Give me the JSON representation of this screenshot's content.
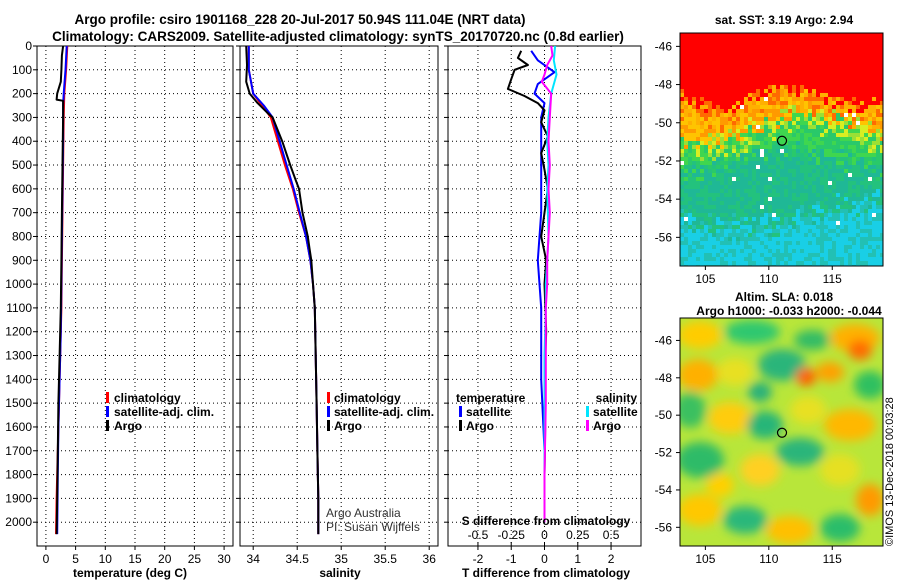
{
  "header": {
    "line1": "Argo profile: csiro 1901168_228 20-Jul-2017 50.94S 111.04E (NRT data)",
    "line2": "Climatology: CARS2009. Satellite-adjusted climatology: synTS_20170720.nc (0.8d earlier)"
  },
  "colors": {
    "climatology": "#ff0000",
    "satellite": "#0000ff",
    "argo": "#000000",
    "sal_satellite": "#00e5ff",
    "sal_argo": "#ff00ff"
  },
  "chart_data": [
    {
      "type": "line",
      "title": "",
      "xlabel": "temperature (deg C)",
      "ylabel": "",
      "xlim": [
        -1.5,
        31.5
      ],
      "ylim": [
        2100,
        0
      ],
      "xticks": [
        "0",
        "5",
        "10",
        "15",
        "20",
        "25",
        "30"
      ],
      "xtick_values": [
        0,
        5,
        10,
        15,
        20,
        25,
        30
      ],
      "yticks": [
        "0",
        "100",
        "200",
        "300",
        "400",
        "500",
        "600",
        "700",
        "800",
        "900",
        "1000",
        "1100",
        "1200",
        "1300",
        "1400",
        "1500",
        "1600",
        "1700",
        "1800",
        "1900",
        "2000"
      ],
      "ytick_values": [
        0,
        100,
        200,
        300,
        400,
        500,
        600,
        700,
        800,
        900,
        1000,
        1100,
        1200,
        1300,
        1400,
        1500,
        1600,
        1700,
        1800,
        1900,
        2000
      ],
      "legend": [
        "climatology",
        "satellite-adj. clim.",
        "Argo"
      ],
      "series": [
        {
          "name": "climatology",
          "color": "#ff0000",
          "points": [
            [
              3.6,
              0
            ],
            [
              3.5,
              50
            ],
            [
              3.4,
              100
            ],
            [
              3.1,
              200
            ],
            [
              3.0,
              300
            ],
            [
              2.9,
              500
            ],
            [
              2.8,
              700
            ],
            [
              2.7,
              900
            ],
            [
              2.6,
              1100
            ],
            [
              2.4,
              1300
            ],
            [
              2.2,
              1500
            ],
            [
              2.0,
              1700
            ],
            [
              1.8,
              1900
            ],
            [
              1.7,
              2050
            ]
          ]
        },
        {
          "name": "satellite-adj. clim.",
          "color": "#0000ff",
          "points": [
            [
              3.5,
              0
            ],
            [
              3.3,
              100
            ],
            [
              3.0,
              200
            ],
            [
              2.9,
              250
            ],
            [
              2.9,
              400
            ],
            [
              2.8,
              600
            ],
            [
              2.7,
              800
            ],
            [
              2.6,
              1000
            ],
            [
              2.5,
              1200
            ],
            [
              2.3,
              1400
            ],
            [
              2.1,
              1600
            ],
            [
              2.0,
              1800
            ],
            [
              1.9,
              2050
            ]
          ]
        },
        {
          "name": "Argo",
          "color": "#000000",
          "points": [
            [
              2.9,
              0
            ],
            [
              2.7,
              40
            ],
            [
              2.6,
              100
            ],
            [
              2.5,
              150
            ],
            [
              1.9,
              200
            ],
            [
              1.8,
              225
            ],
            [
              2.9,
              230
            ],
            [
              2.9,
              300
            ],
            [
              2.8,
              500
            ],
            [
              2.7,
              700
            ],
            [
              2.6,
              900
            ],
            [
              2.5,
              1100
            ],
            [
              2.3,
              1300
            ],
            [
              2.1,
              1500
            ],
            [
              2.0,
              1700
            ],
            [
              1.9,
              1900
            ],
            [
              1.8,
              2050
            ]
          ]
        }
      ]
    },
    {
      "type": "line",
      "title": "",
      "xlabel": "salinity",
      "ylabel": "",
      "xlim": [
        33.85,
        36.1
      ],
      "ylim": [
        2100,
        0
      ],
      "xticks": [
        "34",
        "34.5",
        "35",
        "35.5",
        "36"
      ],
      "xtick_values": [
        34,
        34.5,
        35,
        35.5,
        36
      ],
      "legend": [
        "climatology",
        "satellite-adj. clim.",
        "Argo"
      ],
      "annotation": [
        "Argo Australia",
        "PI: Susan Wijffels"
      ],
      "series": [
        {
          "name": "climatology",
          "color": "#ff0000",
          "points": [
            [
              33.95,
              0
            ],
            [
              33.95,
              100
            ],
            [
              34.0,
              200
            ],
            [
              34.1,
              250
            ],
            [
              34.2,
              300
            ],
            [
              34.28,
              400
            ],
            [
              34.36,
              500
            ],
            [
              34.45,
              600
            ],
            [
              34.52,
              700
            ],
            [
              34.6,
              800
            ],
            [
              34.65,
              900
            ],
            [
              34.68,
              1000
            ],
            [
              34.7,
              1100
            ],
            [
              34.71,
              1300
            ],
            [
              34.72,
              1500
            ],
            [
              34.73,
              1700
            ],
            [
              34.74,
              1900
            ],
            [
              34.74,
              2050
            ]
          ]
        },
        {
          "name": "satellite-adj. clim.",
          "color": "#0000ff",
          "points": [
            [
              33.95,
              0
            ],
            [
              33.95,
              100
            ],
            [
              34.0,
              200
            ],
            [
              34.12,
              250
            ],
            [
              34.22,
              300
            ],
            [
              34.3,
              400
            ],
            [
              34.38,
              500
            ],
            [
              34.46,
              600
            ],
            [
              34.53,
              700
            ],
            [
              34.6,
              800
            ],
            [
              34.65,
              900
            ],
            [
              34.68,
              1000
            ],
            [
              34.7,
              1100
            ],
            [
              34.71,
              1300
            ],
            [
              34.72,
              1500
            ],
            [
              34.73,
              1700
            ],
            [
              34.74,
              1900
            ],
            [
              34.74,
              2050
            ]
          ]
        },
        {
          "name": "Argo",
          "color": "#000000",
          "points": [
            [
              33.92,
              0
            ],
            [
              33.93,
              80
            ],
            [
              33.92,
              150
            ],
            [
              33.96,
              200
            ],
            [
              34.05,
              240
            ],
            [
              34.16,
              280
            ],
            [
              34.22,
              300
            ],
            [
              34.33,
              400
            ],
            [
              34.42,
              500
            ],
            [
              34.48,
              560
            ],
            [
              34.52,
              600
            ],
            [
              34.56,
              700
            ],
            [
              34.62,
              800
            ],
            [
              34.64,
              850
            ],
            [
              34.66,
              900
            ],
            [
              34.68,
              1000
            ],
            [
              34.7,
              1100
            ],
            [
              34.71,
              1300
            ],
            [
              34.72,
              1500
            ],
            [
              34.73,
              1700
            ],
            [
              34.74,
              1900
            ],
            [
              34.74,
              2050
            ]
          ]
        }
      ]
    },
    {
      "type": "line",
      "title": "",
      "xlabel": "T difference from climatology",
      "x2label": "S difference from climatology",
      "xlim": [
        -2.9,
        2.9
      ],
      "x2lim": [
        -0.725,
        0.725
      ],
      "ylim": [
        2100,
        0
      ],
      "xticks": [
        "-2",
        "-1",
        "0",
        "1",
        "2"
      ],
      "xtick_values": [
        -2,
        -1,
        0,
        1,
        2
      ],
      "x2ticks": [
        "-0.5",
        "-0.25",
        "0",
        "0.25",
        "0.5"
      ],
      "x2tick_values": [
        -0.5,
        -0.25,
        0,
        0.25,
        0.5
      ],
      "legend_temperature_title": "temperature",
      "legend_salinity_title": "salinity",
      "legend_temperature": [
        "satellite",
        "Argo"
      ],
      "legend_salinity": [
        "satellite",
        "Argo"
      ],
      "series": [
        {
          "name": "T satellite",
          "axis": "T",
          "color": "#0000ff",
          "points": [
            [
              -0.4,
              20
            ],
            [
              -0.2,
              60
            ],
            [
              0.3,
              110
            ],
            [
              -0.2,
              160
            ],
            [
              -0.3,
              200
            ],
            [
              0.0,
              240
            ],
            [
              -0.1,
              300
            ],
            [
              -0.1,
              400
            ],
            [
              -0.1,
              500
            ],
            [
              -0.1,
              700
            ],
            [
              -0.2,
              900
            ],
            [
              -0.1,
              1100
            ],
            [
              -0.1,
              1400
            ],
            [
              0.0,
              1700
            ],
            [
              0.0,
              2000
            ]
          ]
        },
        {
          "name": "T Argo",
          "axis": "T",
          "color": "#000000",
          "points": [
            [
              -0.7,
              20
            ],
            [
              -0.8,
              50
            ],
            [
              -0.5,
              80
            ],
            [
              -0.9,
              100
            ],
            [
              -1.0,
              140
            ],
            [
              -1.1,
              180
            ],
            [
              -0.6,
              210
            ],
            [
              -0.2,
              240
            ],
            [
              0.0,
              270
            ],
            [
              -0.1,
              320
            ],
            [
              0.1,
              380
            ],
            [
              -0.1,
              450
            ],
            [
              0.0,
              520
            ],
            [
              0.1,
              600
            ],
            [
              0.0,
              700
            ],
            [
              -0.1,
              800
            ],
            [
              0.05,
              900
            ],
            [
              0.0,
              1000
            ],
            [
              0.05,
              1200
            ],
            [
              0.0,
              1400
            ],
            [
              0.02,
              1600
            ],
            [
              0.0,
              1800
            ],
            [
              0.0,
              2000
            ]
          ]
        },
        {
          "name": "S satellite",
          "axis": "S",
          "color": "#00e5ff",
          "points": [
            [
              0.08,
              0
            ],
            [
              0.07,
              60
            ],
            [
              0.09,
              120
            ],
            [
              0.05,
              200
            ],
            [
              0.03,
              300
            ],
            [
              0.02,
              400
            ],
            [
              0.03,
              500
            ],
            [
              0.02,
              600
            ],
            [
              0.03,
              800
            ],
            [
              0.02,
              900
            ],
            [
              0.01,
              1000
            ],
            [
              0.01,
              1100
            ],
            [
              0.0,
              1300
            ],
            [
              0.0,
              1500
            ],
            [
              0.0,
              1800
            ],
            [
              0.0,
              2000
            ]
          ]
        },
        {
          "name": "S Argo",
          "axis": "S",
          "color": "#ff00ff",
          "points": [
            [
              0.05,
              0
            ],
            [
              0.06,
              40
            ],
            [
              0.02,
              80
            ],
            [
              0.0,
              120
            ],
            [
              -0.02,
              150
            ],
            [
              0.05,
              200
            ],
            [
              0.04,
              300
            ],
            [
              0.03,
              400
            ],
            [
              0.04,
              500
            ],
            [
              0.03,
              600
            ],
            [
              0.04,
              700
            ],
            [
              0.03,
              800
            ],
            [
              0.02,
              900
            ],
            [
              0.02,
              1000
            ],
            [
              0.01,
              1100
            ],
            [
              0.01,
              1300
            ],
            [
              0.01,
              1500
            ],
            [
              0.0,
              1800
            ],
            [
              0.0,
              2000
            ]
          ]
        }
      ]
    },
    {
      "type": "heatmap",
      "title": "sat. SST: 3.19 Argo: 2.94",
      "xticks": [
        "105",
        "110",
        "115"
      ],
      "xtick_values": [
        105,
        110,
        115
      ],
      "yticks": [
        "-46",
        "-48",
        "-50",
        "-52",
        "-54",
        "-56"
      ],
      "ytick_values": [
        -46,
        -48,
        -50,
        -52,
        -54,
        -56
      ],
      "xlim": [
        103,
        119
      ],
      "ylim": [
        -57.5,
        -45.3
      ],
      "marker": {
        "lon": 111.04,
        "lat": -50.94
      }
    },
    {
      "type": "heatmap",
      "title": "Altim. SLA: 0.018",
      "subtitle": "Argo h1000: -0.033 h2000: -0.044",
      "xticks": [
        "105",
        "110",
        "115"
      ],
      "xtick_values": [
        105,
        110,
        115
      ],
      "yticks": [
        "-46",
        "-48",
        "-50",
        "-52",
        "-54",
        "-56"
      ],
      "ytick_values": [
        -46,
        -48,
        -50,
        -52,
        -54,
        -56
      ],
      "xlim": [
        103,
        119
      ],
      "ylim": [
        -57,
        -44.8
      ],
      "marker": {
        "lon": 111.04,
        "lat": -50.94
      }
    }
  ],
  "credit": "©IMOS 13-Dec-2018 00:03:28"
}
